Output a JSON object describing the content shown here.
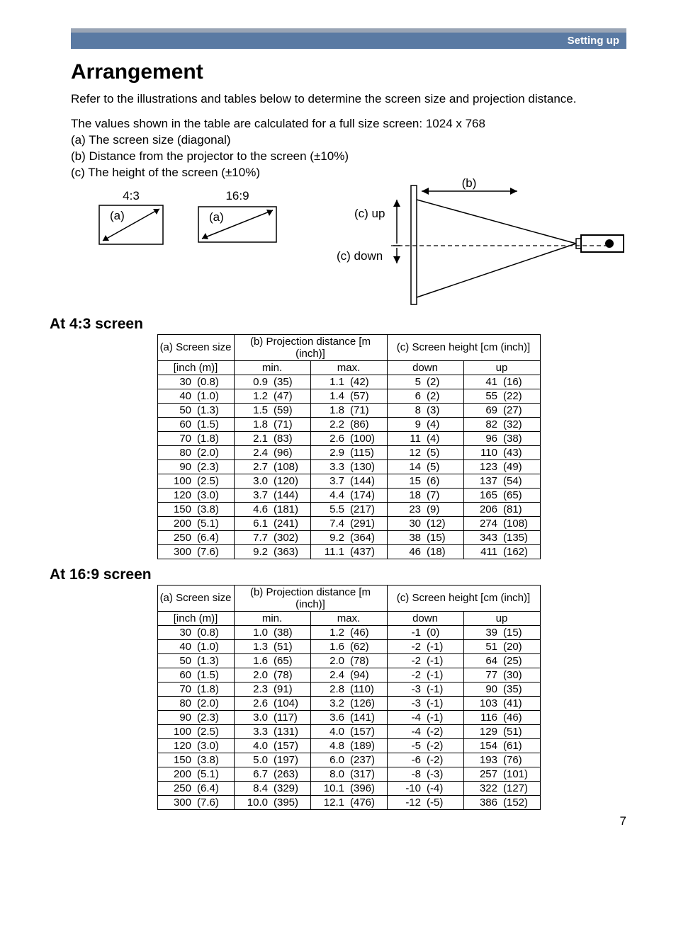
{
  "header": {
    "section": "Setting up"
  },
  "title": "Arrangement",
  "intro": "Refer to the illustrations and tables below to determine the screen size and projection distance.",
  "calc_line": "The values shown in the table are calculated for a full size screen: 1024 x 768",
  "legend": {
    "a": "(a) The screen size (diagonal)",
    "b": "(b) Distance from the projector to the screen (±10%)",
    "c": "(c) The height of the screen (±10%)"
  },
  "diagram": {
    "ratio43": "4:3",
    "ratio169": "16:9",
    "a": "(a)",
    "b": "(b)",
    "c_up": "(c) up",
    "c_down": "(c) down"
  },
  "screen43_title": "At 4:3 screen",
  "screen169_title": "At 16:9 screen",
  "table_headers": {
    "a": "(a) Screen size",
    "a_sub": "[inch (m)]",
    "b": "(b) Projection distance [m (inch)]",
    "b_min": "min.",
    "b_max": "max.",
    "c": "(c) Screen height [cm (inch)]",
    "c_down": "down",
    "c_up": "up"
  },
  "table43": {
    "rows": [
      {
        "inch": 30,
        "m": "(0.8)",
        "min_m": 0.9,
        "min_in": "(35)",
        "max_m": 1.1,
        "max_in": "(42)",
        "down_cm": 5,
        "down_in": "(2)",
        "up_cm": 41,
        "up_in": "(16)"
      },
      {
        "inch": 40,
        "m": "(1.0)",
        "min_m": 1.2,
        "min_in": "(47)",
        "max_m": 1.4,
        "max_in": "(57)",
        "down_cm": 6,
        "down_in": "(2)",
        "up_cm": 55,
        "up_in": "(22)"
      },
      {
        "inch": 50,
        "m": "(1.3)",
        "min_m": 1.5,
        "min_in": "(59)",
        "max_m": 1.8,
        "max_in": "(71)",
        "down_cm": 8,
        "down_in": "(3)",
        "up_cm": 69,
        "up_in": "(27)"
      },
      {
        "inch": 60,
        "m": "(1.5)",
        "min_m": 1.8,
        "min_in": "(71)",
        "max_m": 2.2,
        "max_in": "(86)",
        "down_cm": 9,
        "down_in": "(4)",
        "up_cm": 82,
        "up_in": "(32)"
      },
      {
        "inch": 70,
        "m": "(1.8)",
        "min_m": 2.1,
        "min_in": "(83)",
        "max_m": 2.6,
        "max_in": "(100)",
        "down_cm": 11,
        "down_in": "(4)",
        "up_cm": 96,
        "up_in": "(38)"
      },
      {
        "inch": 80,
        "m": "(2.0)",
        "min_m": 2.4,
        "min_in": "(96)",
        "max_m": 2.9,
        "max_in": "(115)",
        "down_cm": 12,
        "down_in": "(5)",
        "up_cm": 110,
        "up_in": "(43)"
      },
      {
        "inch": 90,
        "m": "(2.3)",
        "min_m": 2.7,
        "min_in": "(108)",
        "max_m": 3.3,
        "max_in": "(130)",
        "down_cm": 14,
        "down_in": "(5)",
        "up_cm": 123,
        "up_in": "(49)"
      },
      {
        "inch": 100,
        "m": "(2.5)",
        "min_m": 3.0,
        "min_in": "(120)",
        "max_m": 3.7,
        "max_in": "(144)",
        "down_cm": 15,
        "down_in": "(6)",
        "up_cm": 137,
        "up_in": "(54)"
      },
      {
        "inch": 120,
        "m": "(3.0)",
        "min_m": 3.7,
        "min_in": "(144)",
        "max_m": 4.4,
        "max_in": "(174)",
        "down_cm": 18,
        "down_in": "(7)",
        "up_cm": 165,
        "up_in": "(65)"
      },
      {
        "inch": 150,
        "m": "(3.8)",
        "min_m": 4.6,
        "min_in": "(181)",
        "max_m": 5.5,
        "max_in": "(217)",
        "down_cm": 23,
        "down_in": "(9)",
        "up_cm": 206,
        "up_in": "(81)"
      },
      {
        "inch": 200,
        "m": "(5.1)",
        "min_m": 6.1,
        "min_in": "(241)",
        "max_m": 7.4,
        "max_in": "(291)",
        "down_cm": 30,
        "down_in": "(12)",
        "up_cm": 274,
        "up_in": "(108)"
      },
      {
        "inch": 250,
        "m": "(6.4)",
        "min_m": 7.7,
        "min_in": "(302)",
        "max_m": 9.2,
        "max_in": "(364)",
        "down_cm": 38,
        "down_in": "(15)",
        "up_cm": 343,
        "up_in": "(135)"
      },
      {
        "inch": 300,
        "m": "(7.6)",
        "min_m": 9.2,
        "min_in": "(363)",
        "max_m": 11.1,
        "max_in": "(437)",
        "down_cm": 46,
        "down_in": "(18)",
        "up_cm": 411,
        "up_in": "(162)"
      }
    ]
  },
  "table169": {
    "rows": [
      {
        "inch": 30,
        "m": "(0.8)",
        "min_m": 1.0,
        "min_in": "(38)",
        "max_m": 1.2,
        "max_in": "(46)",
        "down_cm": -1,
        "down_in": "(0)",
        "up_cm": 39,
        "up_in": "(15)"
      },
      {
        "inch": 40,
        "m": "(1.0)",
        "min_m": 1.3,
        "min_in": "(51)",
        "max_m": 1.6,
        "max_in": "(62)",
        "down_cm": -2,
        "down_in": "(-1)",
        "up_cm": 51,
        "up_in": "(20)"
      },
      {
        "inch": 50,
        "m": "(1.3)",
        "min_m": 1.6,
        "min_in": "(65)",
        "max_m": 2.0,
        "max_in": "(78)",
        "down_cm": -2,
        "down_in": "(-1)",
        "up_cm": 64,
        "up_in": "(25)"
      },
      {
        "inch": 60,
        "m": "(1.5)",
        "min_m": 2.0,
        "min_in": "(78)",
        "max_m": 2.4,
        "max_in": "(94)",
        "down_cm": -2,
        "down_in": "(-1)",
        "up_cm": 77,
        "up_in": "(30)"
      },
      {
        "inch": 70,
        "m": "(1.8)",
        "min_m": 2.3,
        "min_in": "(91)",
        "max_m": 2.8,
        "max_in": "(110)",
        "down_cm": -3,
        "down_in": "(-1)",
        "up_cm": 90,
        "up_in": "(35)"
      },
      {
        "inch": 80,
        "m": "(2.0)",
        "min_m": 2.6,
        "min_in": "(104)",
        "max_m": 3.2,
        "max_in": "(126)",
        "down_cm": -3,
        "down_in": "(-1)",
        "up_cm": 103,
        "up_in": "(41)"
      },
      {
        "inch": 90,
        "m": "(2.3)",
        "min_m": 3.0,
        "min_in": "(117)",
        "max_m": 3.6,
        "max_in": "(141)",
        "down_cm": -4,
        "down_in": "(-1)",
        "up_cm": 116,
        "up_in": "(46)"
      },
      {
        "inch": 100,
        "m": "(2.5)",
        "min_m": 3.3,
        "min_in": "(131)",
        "max_m": 4.0,
        "max_in": "(157)",
        "down_cm": -4,
        "down_in": "(-2)",
        "up_cm": 129,
        "up_in": "(51)"
      },
      {
        "inch": 120,
        "m": "(3.0)",
        "min_m": 4.0,
        "min_in": "(157)",
        "max_m": 4.8,
        "max_in": "(189)",
        "down_cm": -5,
        "down_in": "(-2)",
        "up_cm": 154,
        "up_in": "(61)"
      },
      {
        "inch": 150,
        "m": "(3.8)",
        "min_m": 5.0,
        "min_in": "(197)",
        "max_m": 6.0,
        "max_in": "(237)",
        "down_cm": -6,
        "down_in": "(-2)",
        "up_cm": 193,
        "up_in": "(76)"
      },
      {
        "inch": 200,
        "m": "(5.1)",
        "min_m": 6.7,
        "min_in": "(263)",
        "max_m": 8.0,
        "max_in": "(317)",
        "down_cm": -8,
        "down_in": "(-3)",
        "up_cm": 257,
        "up_in": "(101)"
      },
      {
        "inch": 250,
        "m": "(6.4)",
        "min_m": 8.4,
        "min_in": "(329)",
        "max_m": 10.1,
        "max_in": "(396)",
        "down_cm": -10,
        "down_in": "(-4)",
        "up_cm": 322,
        "up_in": "(127)"
      },
      {
        "inch": 300,
        "m": "(7.6)",
        "min_m": 10.0,
        "min_in": "(395)",
        "max_m": 12.1,
        "max_in": "(476)",
        "down_cm": -12,
        "down_in": "(-5)",
        "up_cm": 386,
        "up_in": "(152)"
      }
    ]
  },
  "page_number": "7"
}
